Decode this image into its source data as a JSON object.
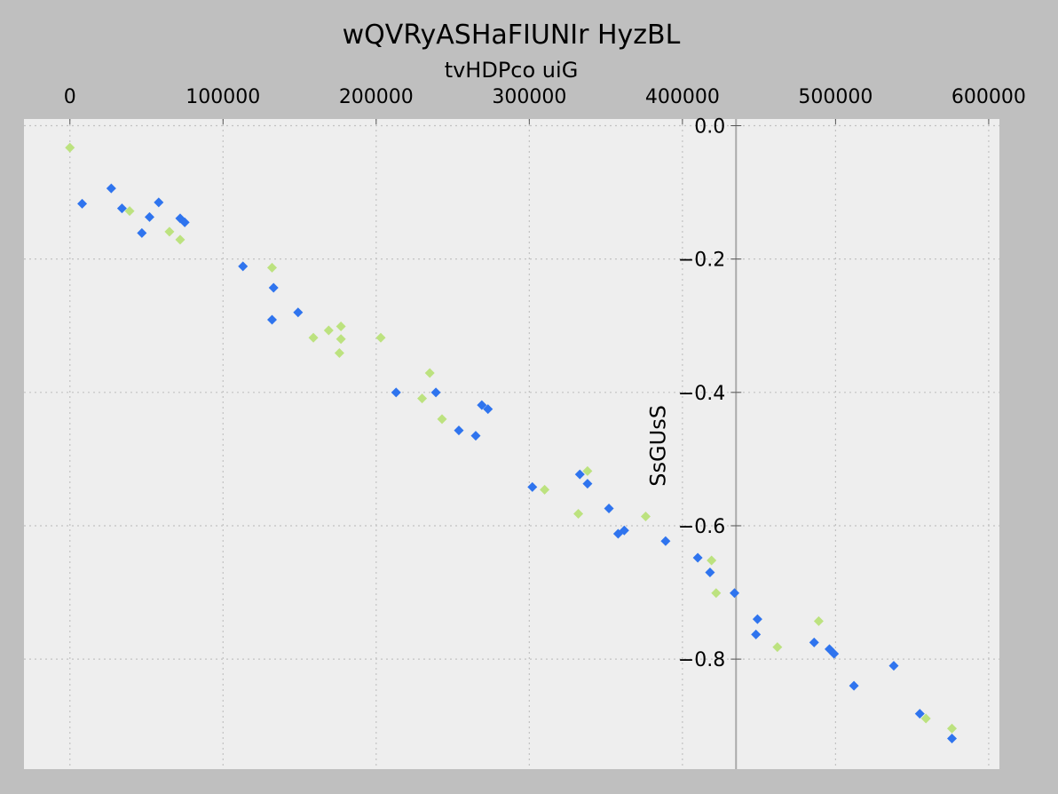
{
  "chart_data": {
    "type": "scatter",
    "title": "wQVRyASHaFIUNIr HyzBL",
    "xlabel": "tvHDPco uiG",
    "ylabel": "SsGUsS",
    "xlim": [
      -30000,
      607000
    ],
    "ylim": [
      -0.965,
      0.01
    ],
    "x_ticks": [
      0,
      100000,
      200000,
      300000,
      400000,
      500000,
      600000
    ],
    "x_tick_labels": [
      "0",
      "100000",
      "200000",
      "300000",
      "400000",
      "500000",
      "600000"
    ],
    "y_ticks": [
      0.0,
      -0.2,
      -0.4,
      -0.6,
      -0.8
    ],
    "y_tick_labels": [
      "0.0",
      "−0.2",
      "−0.4",
      "−0.6",
      "−0.8"
    ],
    "x_axis_position": "top",
    "y_axis_at_x": 435000,
    "grid": true,
    "grid_style": "dotted",
    "background_color": "#eeeeee",
    "outer_background": "#bfbfbf",
    "marker": "diamond",
    "series": [
      {
        "color": "#2f74ee",
        "points": [
          [
            8000,
            -0.117
          ],
          [
            27000,
            -0.094
          ],
          [
            34000,
            -0.124
          ],
          [
            47000,
            -0.161
          ],
          [
            52000,
            -0.137
          ],
          [
            58000,
            -0.115
          ],
          [
            72000,
            -0.139
          ],
          [
            75000,
            -0.145
          ],
          [
            113000,
            -0.211
          ],
          [
            132000,
            -0.291
          ],
          [
            133000,
            -0.243
          ],
          [
            149000,
            -0.28
          ],
          [
            213000,
            -0.4
          ],
          [
            239000,
            -0.4
          ],
          [
            254000,
            -0.457
          ],
          [
            265000,
            -0.465
          ],
          [
            269000,
            -0.419
          ],
          [
            273000,
            -0.425
          ],
          [
            302000,
            -0.542
          ],
          [
            333000,
            -0.523
          ],
          [
            338000,
            -0.537
          ],
          [
            352000,
            -0.574
          ],
          [
            358000,
            -0.612
          ],
          [
            362000,
            -0.607
          ],
          [
            389000,
            -0.623
          ],
          [
            410000,
            -0.648
          ],
          [
            418000,
            -0.67
          ],
          [
            434000,
            -0.701
          ],
          [
            449000,
            -0.74
          ],
          [
            448000,
            -0.763
          ],
          [
            486000,
            -0.775
          ],
          [
            496000,
            -0.785
          ],
          [
            499000,
            -0.792
          ],
          [
            512000,
            -0.84
          ],
          [
            538000,
            -0.81
          ],
          [
            555000,
            -0.882
          ],
          [
            576000,
            -0.919
          ]
        ]
      },
      {
        "color": "#bce27f",
        "points": [
          [
            0,
            -0.033
          ],
          [
            39000,
            -0.128
          ],
          [
            65000,
            -0.159
          ],
          [
            72000,
            -0.171
          ],
          [
            132000,
            -0.213
          ],
          [
            159000,
            -0.318
          ],
          [
            169000,
            -0.307
          ],
          [
            176000,
            -0.341
          ],
          [
            177000,
            -0.301
          ],
          [
            177000,
            -0.32
          ],
          [
            203000,
            -0.318
          ],
          [
            230000,
            -0.409
          ],
          [
            235000,
            -0.371
          ],
          [
            243000,
            -0.44
          ],
          [
            310000,
            -0.546
          ],
          [
            332000,
            -0.582
          ],
          [
            338000,
            -0.518
          ],
          [
            376000,
            -0.586
          ],
          [
            419000,
            -0.652
          ],
          [
            422000,
            -0.701
          ],
          [
            462000,
            -0.782
          ],
          [
            489000,
            -0.743
          ],
          [
            559000,
            -0.889
          ],
          [
            576000,
            -0.904
          ]
        ]
      }
    ]
  }
}
